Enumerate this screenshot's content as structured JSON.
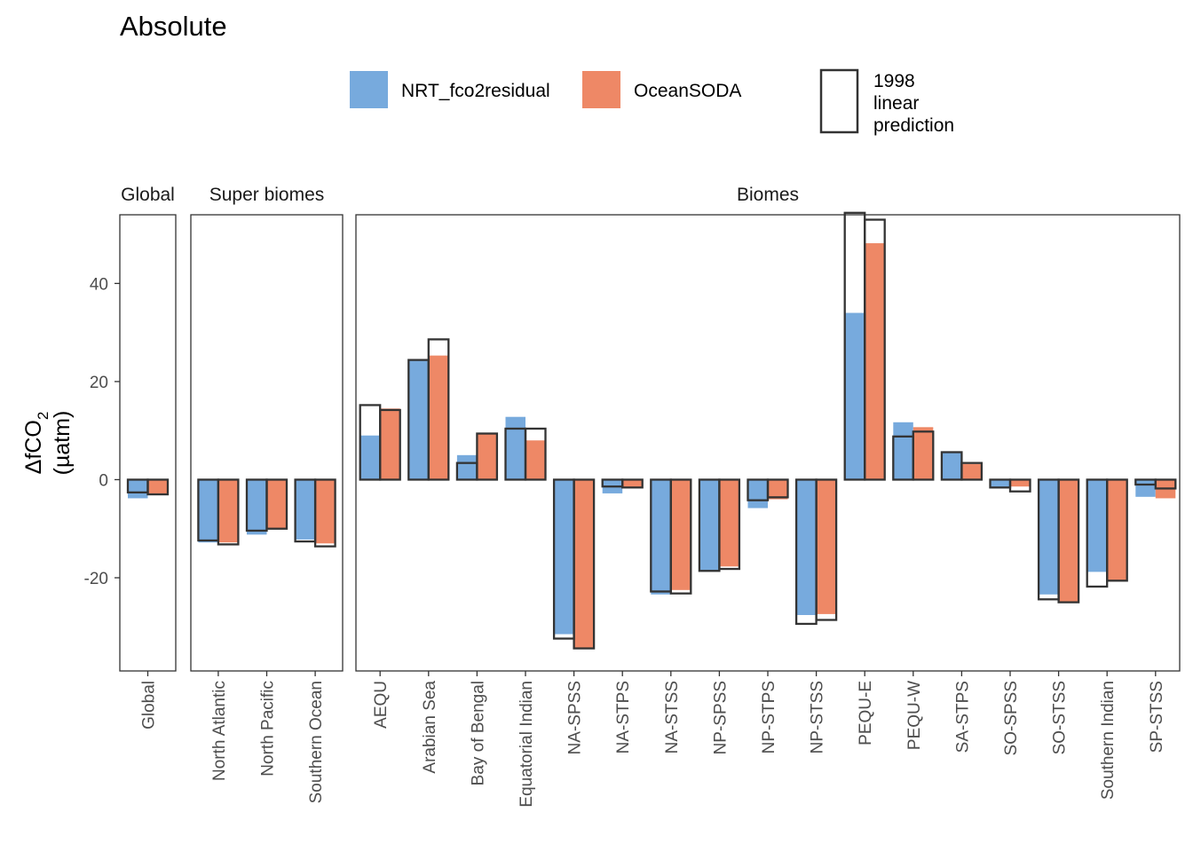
{
  "title": "Absolute",
  "legend": {
    "items": [
      {
        "label": "NRT_fco2residual",
        "color": "#77AADD"
      },
      {
        "label": "OceanSODA",
        "color": "#EE8866"
      }
    ],
    "outline_label_lines": [
      "1998",
      "linear",
      "prediction"
    ]
  },
  "y_axis": {
    "label_delta": "ΔfCO",
    "label_subscript": "2",
    "label_unit": "(µatm)"
  },
  "chart_data": {
    "type": "bar",
    "title": "Absolute",
    "ylim": [
      -39,
      54
    ],
    "yticks": [
      -20,
      0,
      20,
      40
    ],
    "grid": false,
    "legend_position": "top",
    "series": [
      {
        "name": "NRT_fco2residual",
        "color": "#77AADD"
      },
      {
        "name": "OceanSODA",
        "color": "#EE8866"
      }
    ],
    "outline_series": "1998 linear prediction",
    "panels": [
      {
        "strip": "Global",
        "categories": [
          "Global"
        ],
        "NRT_fco2residual": [
          -3.8
        ],
        "OceanSODA": [
          -3.0
        ],
        "linear_prediction": [
          [
            -2.6,
            -3.0
          ]
        ]
      },
      {
        "strip": "Super biomes",
        "categories": [
          "North Atlantic",
          "North Pacific",
          "Southern Ocean"
        ],
        "NRT_fco2residual": [
          -12.8,
          -11.2,
          -12.2
        ],
        "OceanSODA": [
          -12.8,
          -10.0,
          -13.0
        ],
        "linear_prediction": [
          [
            -12.4,
            -13.2
          ],
          [
            -10.4,
            -10.0
          ],
          [
            -12.6,
            -13.6
          ]
        ]
      },
      {
        "strip": "Biomes",
        "categories": [
          "AEQU",
          "Arabian Sea",
          "Bay of Bengal",
          "Equatorial Indian",
          "NA-SPSS",
          "NA-STPS",
          "NA-STSS",
          "NP-SPSS",
          "NP-STPS",
          "NP-STSS",
          "PEQU-E",
          "PEQU-W",
          "SA-STPS",
          "SO-SPSS",
          "SO-STSS",
          "Southern Indian",
          "SP-STSS"
        ],
        "NRT_fco2residual": [
          9.0,
          24.5,
          5.0,
          12.8,
          -31.5,
          -2.8,
          -23.4,
          -18.5,
          -5.8,
          -27.6,
          34.0,
          11.7,
          5.5,
          -1.8,
          -23.4,
          -18.8,
          -3.5
        ],
        "OceanSODA": [
          14.5,
          25.3,
          9.4,
          8.0,
          -34.4,
          -1.6,
          -22.5,
          -17.7,
          -4.0,
          -27.4,
          48.2,
          10.7,
          3.2,
          -1.4,
          -25.0,
          -20.5,
          -3.8
        ],
        "linear_prediction": [
          [
            15.2,
            14.2
          ],
          [
            24.4,
            28.6
          ],
          [
            3.4,
            9.4
          ],
          [
            10.4,
            10.4
          ],
          [
            -32.4,
            -34.4
          ],
          [
            -1.4,
            -1.6
          ],
          [
            -22.8,
            -23.2
          ],
          [
            -18.6,
            -18.2
          ],
          [
            -4.2,
            -3.6
          ],
          [
            -29.4,
            -28.6
          ],
          [
            54.4,
            53.0
          ],
          [
            8.8,
            9.8
          ],
          [
            5.6,
            3.4
          ],
          [
            -1.6,
            -2.4
          ],
          [
            -24.4,
            -25.0
          ],
          [
            -21.8,
            -20.6
          ],
          [
            -1.0,
            -1.8
          ]
        ]
      }
    ]
  }
}
